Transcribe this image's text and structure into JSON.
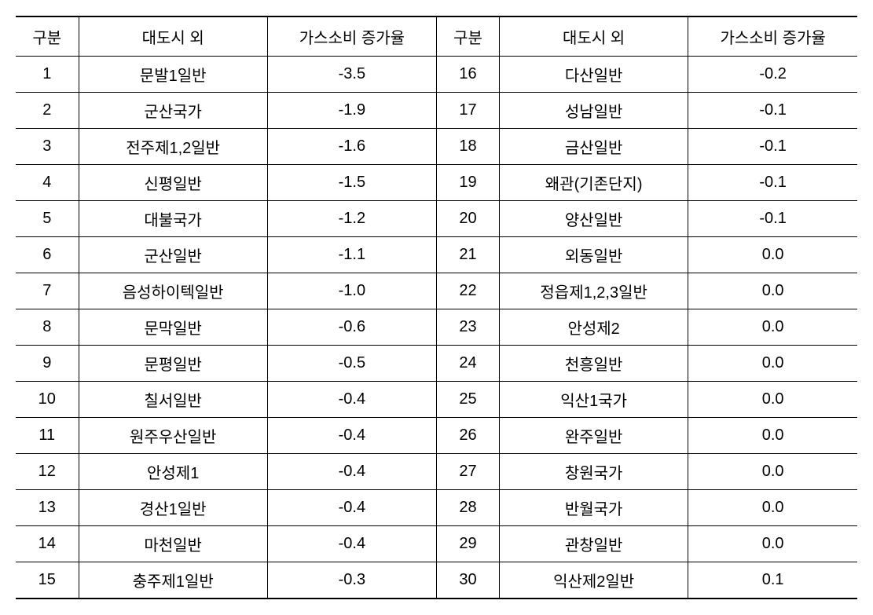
{
  "table": {
    "headers": {
      "col1": "구분",
      "col2": "대도시 외",
      "col3": "가스소비 증가율",
      "col4": "구분",
      "col5": "대도시 외",
      "col6": "가스소비 증가율"
    },
    "rows": [
      {
        "n1": "1",
        "name1": "문발1일반",
        "rate1": "-3.5",
        "n2": "16",
        "name2": "다산일반",
        "rate2": "-0.2"
      },
      {
        "n1": "2",
        "name1": "군산국가",
        "rate1": "-1.9",
        "n2": "17",
        "name2": "성남일반",
        "rate2": "-0.1"
      },
      {
        "n1": "3",
        "name1": "전주제1,2일반",
        "rate1": "-1.6",
        "n2": "18",
        "name2": "금산일반",
        "rate2": "-0.1"
      },
      {
        "n1": "4",
        "name1": "신평일반",
        "rate1": "-1.5",
        "n2": "19",
        "name2": "왜관(기존단지)",
        "rate2": "-0.1"
      },
      {
        "n1": "5",
        "name1": "대불국가",
        "rate1": "-1.2",
        "n2": "20",
        "name2": "양산일반",
        "rate2": "-0.1"
      },
      {
        "n1": "6",
        "name1": "군산일반",
        "rate1": "-1.1",
        "n2": "21",
        "name2": "외동일반",
        "rate2": "0.0"
      },
      {
        "n1": "7",
        "name1": "음성하이텍일반",
        "rate1": "-1.0",
        "n2": "22",
        "name2": "정읍제1,2,3일반",
        "rate2": "0.0"
      },
      {
        "n1": "8",
        "name1": "문막일반",
        "rate1": "-0.6",
        "n2": "23",
        "name2": "안성제2",
        "rate2": "0.0"
      },
      {
        "n1": "9",
        "name1": "문평일반",
        "rate1": "-0.5",
        "n2": "24",
        "name2": "천흥일반",
        "rate2": "0.0"
      },
      {
        "n1": "10",
        "name1": "칠서일반",
        "rate1": "-0.4",
        "n2": "25",
        "name2": "익산1국가",
        "rate2": "0.0"
      },
      {
        "n1": "11",
        "name1": "원주우산일반",
        "rate1": "-0.4",
        "n2": "26",
        "name2": "완주일반",
        "rate2": "0.0"
      },
      {
        "n1": "12",
        "name1": "안성제1",
        "rate1": "-0.4",
        "n2": "27",
        "name2": "창원국가",
        "rate2": "0.0"
      },
      {
        "n1": "13",
        "name1": "경산1일반",
        "rate1": "-0.4",
        "n2": "28",
        "name2": "반월국가",
        "rate2": "0.0"
      },
      {
        "n1": "14",
        "name1": "마천일반",
        "rate1": "-0.4",
        "n2": "29",
        "name2": "관창일반",
        "rate2": "0.0"
      },
      {
        "n1": "15",
        "name1": "충주제1일반",
        "rate1": "-0.3",
        "n2": "30",
        "name2": "익산제2일반",
        "rate2": "0.1"
      }
    ]
  },
  "styling": {
    "font_family": "Malgun Gothic",
    "font_size_pt": 20,
    "border_color": "#000000",
    "background_color": "#ffffff",
    "header_border_top_width": 2,
    "header_border_bottom_width": 1,
    "body_border_width": 1,
    "last_row_border_width": 2,
    "column_widths": {
      "num": 80,
      "name": 240,
      "rate": 215
    }
  }
}
